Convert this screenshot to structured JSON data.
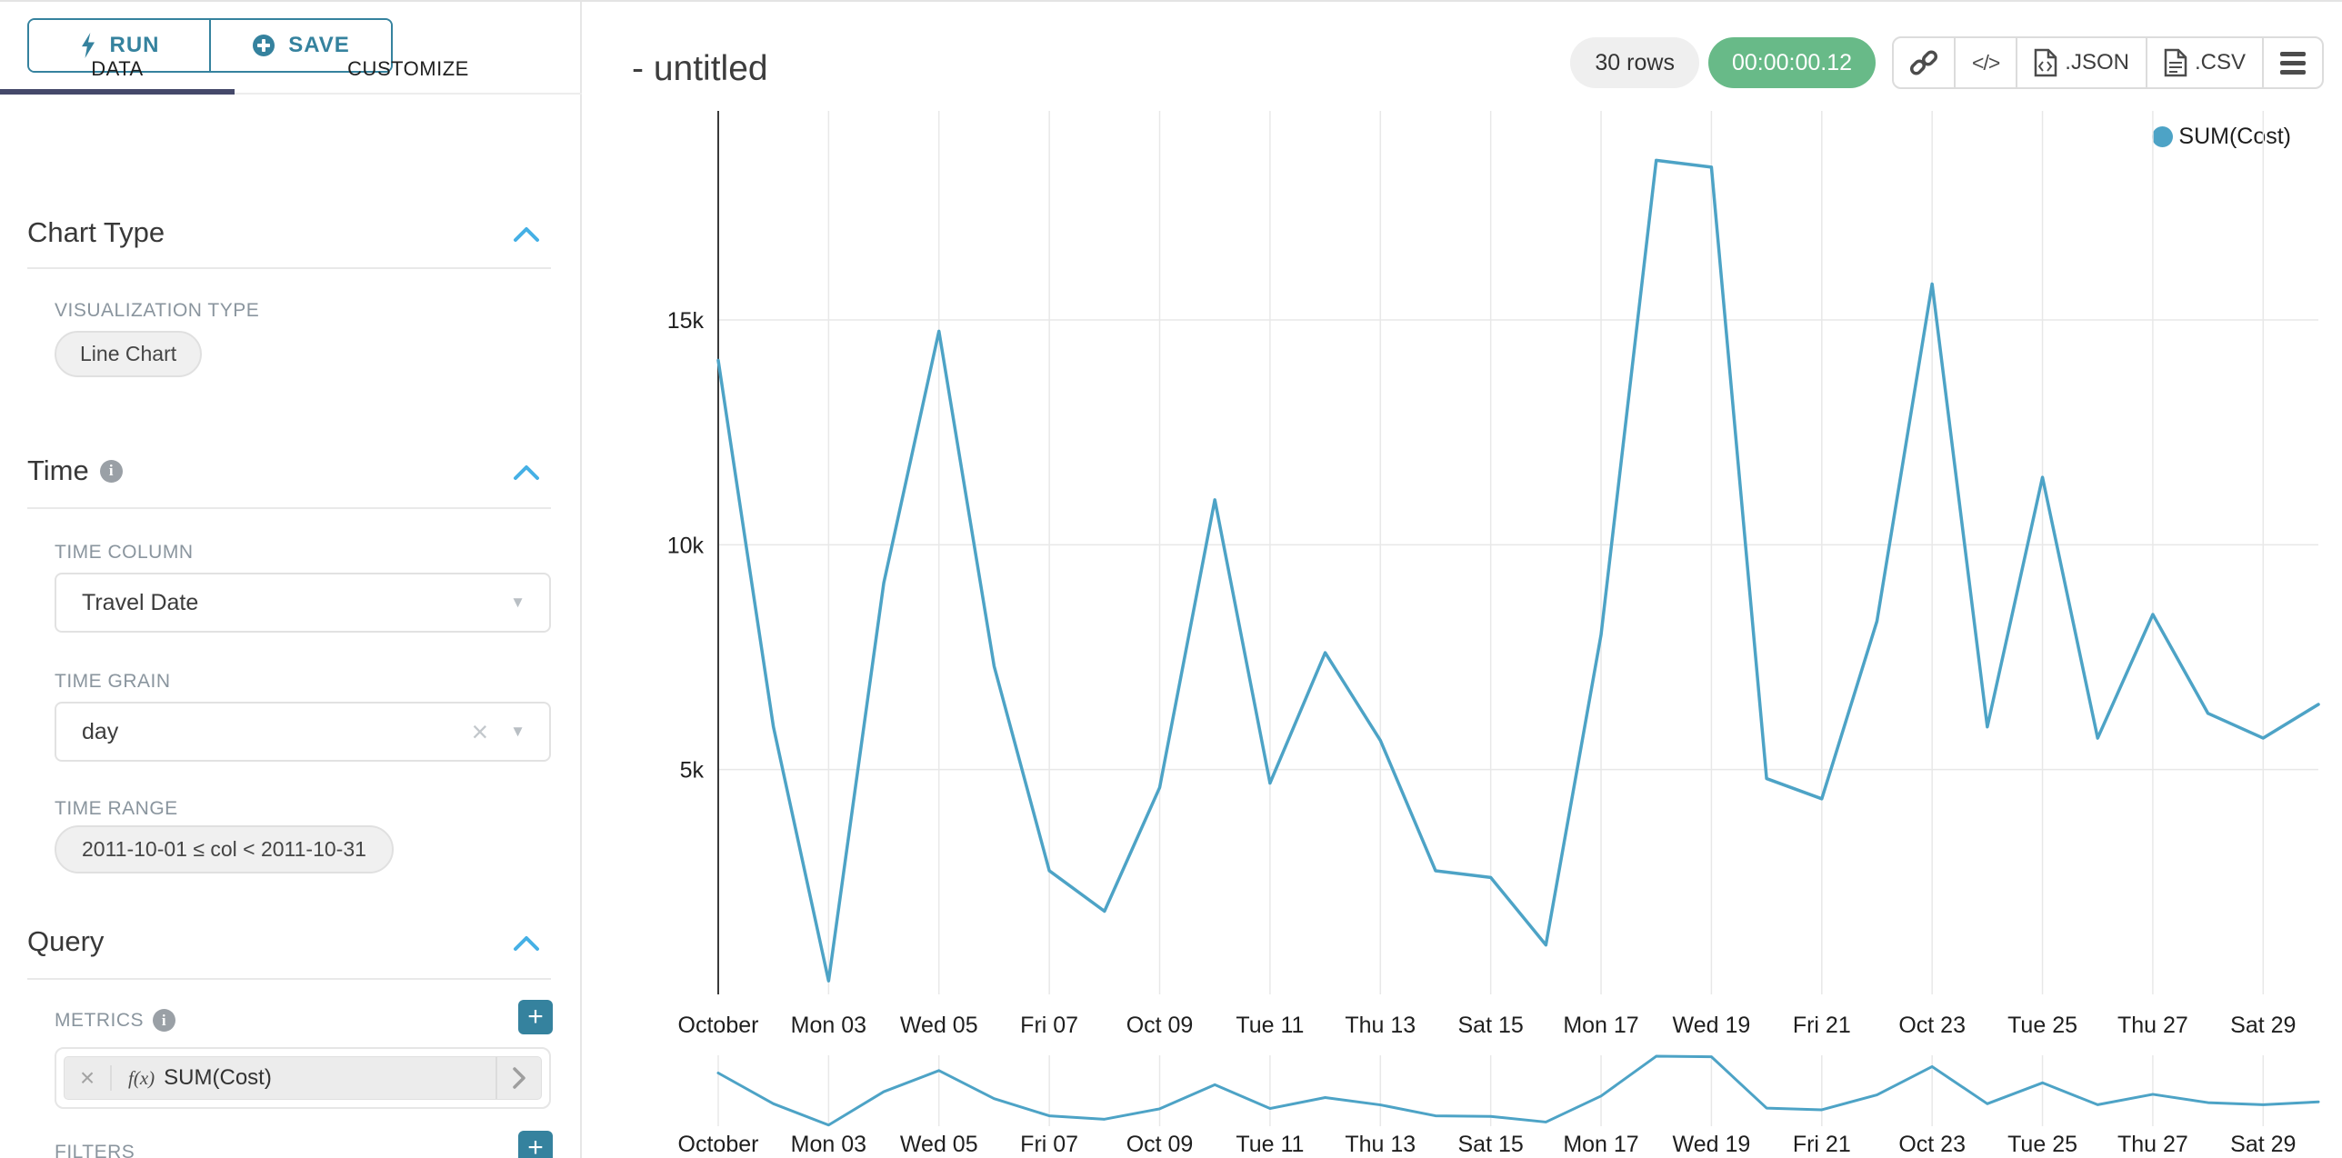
{
  "sidebar": {
    "run_label": "RUN",
    "save_label": "SAVE",
    "tabs": {
      "data": "DATA",
      "customize": "CUSTOMIZE"
    },
    "chart_type": {
      "title": "Chart Type",
      "viz_type_label": "VISUALIZATION TYPE",
      "viz_type_value": "Line Chart"
    },
    "time": {
      "title": "Time",
      "time_column_label": "TIME COLUMN",
      "time_column_value": "Travel Date",
      "time_grain_label": "TIME GRAIN",
      "time_grain_value": "day",
      "time_range_label": "TIME RANGE",
      "time_range_value": "2011-10-01 ≤ col < 2011-10-31"
    },
    "query": {
      "title": "Query",
      "metrics_label": "METRICS",
      "metric_fx": "f(x)",
      "metric_value": "SUM(Cost)",
      "filters_label": "FILTERS",
      "add_label": "+"
    }
  },
  "header": {
    "title": "- untitled",
    "rows_badge": "30 rows",
    "timer_badge": "00:00:00.12",
    "export_json_label": ".JSON",
    "export_csv_label": ".CSV",
    "code_glyph": "</>"
  },
  "legend": {
    "label": "SUM(Cost)"
  },
  "colors": {
    "accent_teal": "#35829e",
    "tab_underline": "#45496a",
    "collapse_chevron": "#45b0e5",
    "timer_green": "#68ba88",
    "line": "#4da3c6"
  },
  "chart_data": {
    "type": "line",
    "title": "",
    "xlabel": "",
    "ylabel": "",
    "x": [
      "2011-10-01",
      "2011-10-02",
      "2011-10-03",
      "2011-10-04",
      "2011-10-05",
      "2011-10-06",
      "2011-10-07",
      "2011-10-08",
      "2011-10-09",
      "2011-10-10",
      "2011-10-11",
      "2011-10-12",
      "2011-10-13",
      "2011-10-14",
      "2011-10-15",
      "2011-10-16",
      "2011-10-17",
      "2011-10-18",
      "2011-10-19",
      "2011-10-20",
      "2011-10-21",
      "2011-10-22",
      "2011-10-23",
      "2011-10-24",
      "2011-10-25",
      "2011-10-26",
      "2011-10-27",
      "2011-10-28",
      "2011-10-29",
      "2011-10-30"
    ],
    "series": [
      {
        "name": "SUM(Cost)",
        "values": [
          14100,
          5950,
          300,
          9150,
          14750,
          7300,
          2750,
          1850,
          4600,
          11000,
          4700,
          7600,
          5650,
          2750,
          2600,
          1100,
          8000,
          18550,
          18400,
          4800,
          4350,
          8300,
          15800,
          5950,
          11500,
          5700,
          8450,
          6250,
          5700,
          6450
        ]
      }
    ],
    "x_tick_labels": [
      "October",
      "Mon 03",
      "Wed 05",
      "Fri 07",
      "Oct 09",
      "Tue 11",
      "Thu 13",
      "Sat 15",
      "Mon 17",
      "Wed 19",
      "Fri 21",
      "Oct 23",
      "Tue 25",
      "Thu 27",
      "Sat 29"
    ],
    "y_gridlines": [
      5000,
      10000,
      15000
    ],
    "y_tick_labels": [
      "5k",
      "10k",
      "15k"
    ],
    "ylim": [
      0,
      19650
    ],
    "grid": true,
    "legend_position": "top-right",
    "line_color": "#4da3c6",
    "has_range_brush_chart": true
  }
}
